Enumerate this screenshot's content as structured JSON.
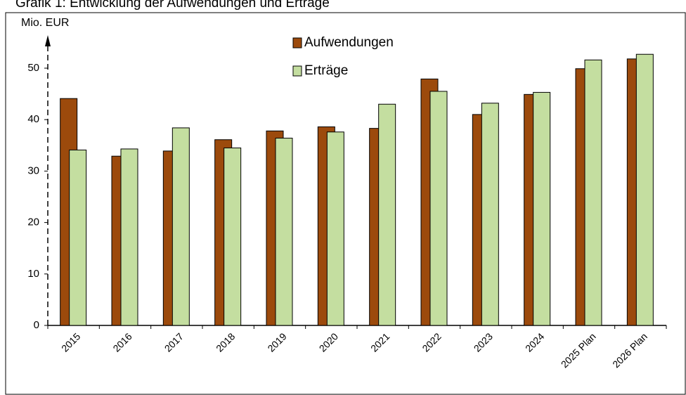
{
  "chart_data": {
    "type": "bar",
    "title": "Grafik 1: Entwicklung der Aufwendungen und Erträge",
    "y_label": "Mio. EUR",
    "categories": [
      "2015",
      "2016",
      "2017",
      "2018",
      "2019",
      "2020",
      "2021",
      "2022",
      "2023",
      "2024",
      "2025 Plan",
      "2026 Plan"
    ],
    "series": [
      {
        "name": "Aufwendungen",
        "color": "#9c4a0c",
        "values": [
          44.1,
          32.9,
          33.9,
          36.1,
          37.8,
          38.6,
          38.3,
          47.9,
          41.0,
          44.9,
          49.9,
          51.8
        ]
      },
      {
        "name": "Erträge",
        "color": "#c4dea0",
        "values": [
          34.1,
          34.3,
          38.4,
          34.5,
          36.4,
          37.6,
          43.0,
          45.5,
          43.2,
          45.3,
          51.6,
          52.7
        ]
      }
    ],
    "ylim": [
      0,
      55
    ],
    "yticks": [
      0,
      10,
      20,
      30,
      40,
      50
    ],
    "grid": false,
    "legend": "top"
  }
}
